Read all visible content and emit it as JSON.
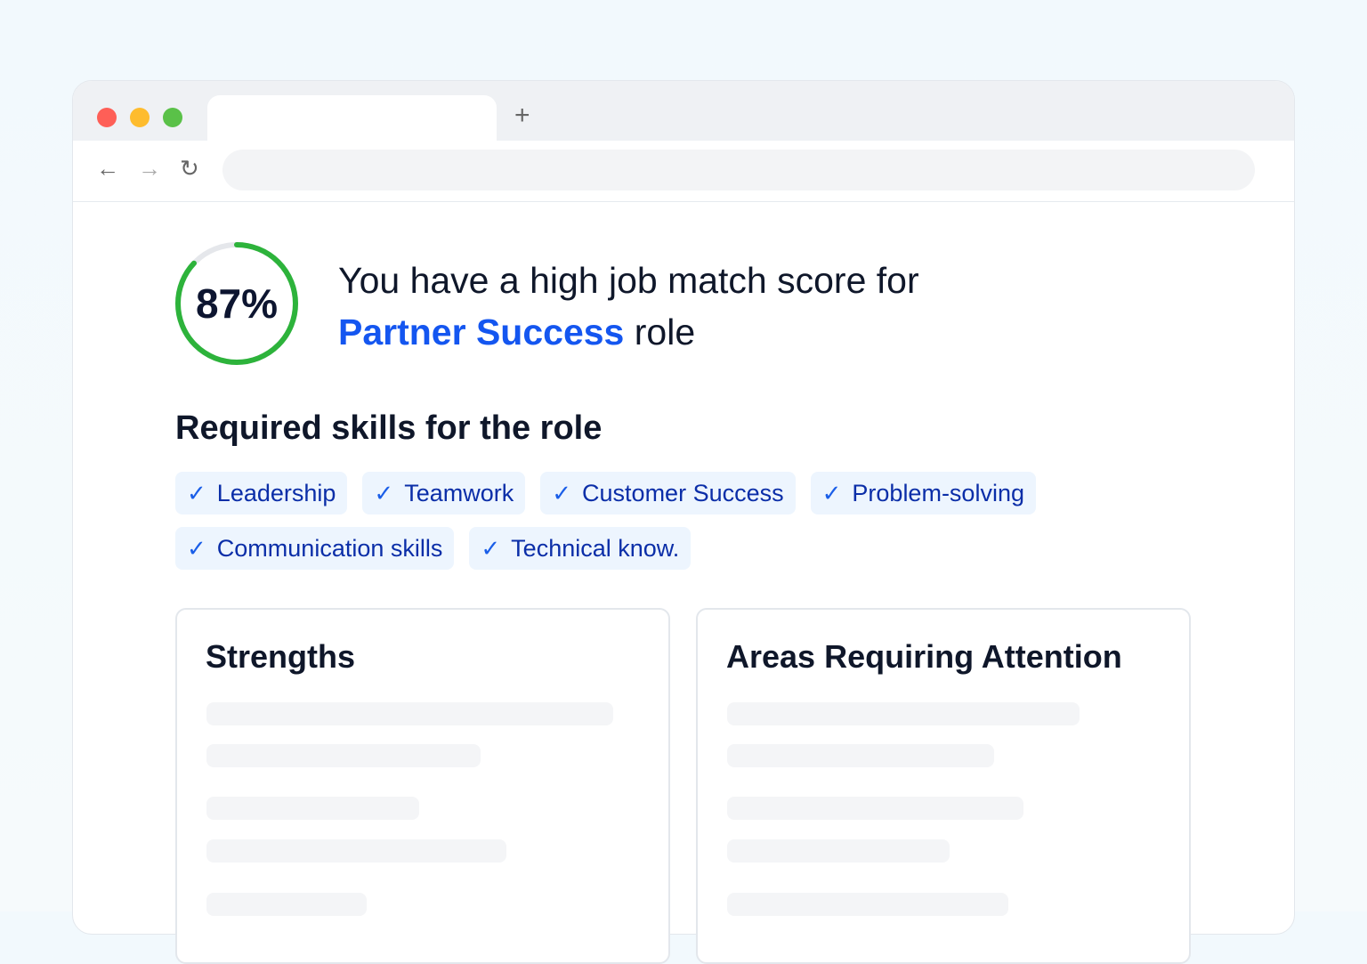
{
  "browser": {
    "new_tab_label": "+",
    "icons": [
      "back-arrow-icon",
      "forward-arrow-icon",
      "reload-icon"
    ],
    "traffic_lights": [
      "#fe5f57",
      "#febc2e",
      "#5ac148"
    ]
  },
  "match": {
    "score_percent": 87,
    "score_label": "87%",
    "ring_color": "#2db33b",
    "headline_prefix": "You have a high job match score for",
    "role_name": "Partner Success",
    "role_suffix": "role"
  },
  "skills": {
    "title": "Required skills for the role",
    "items": [
      "Leadership",
      "Teamwork",
      "Customer Success",
      "Problem-solving",
      "Communication skills",
      "Technical know."
    ]
  },
  "cards": {
    "strengths_title": "Strengths",
    "attention_title": "Areas Requiring Attention"
  }
}
